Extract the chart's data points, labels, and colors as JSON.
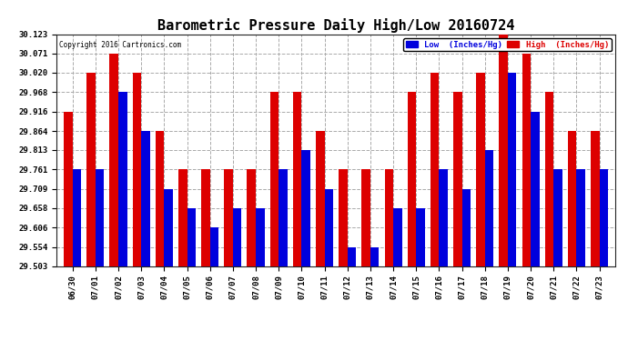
{
  "title": "Barometric Pressure Daily High/Low 20160724",
  "copyright": "Copyright 2016 Cartronics.com",
  "legend_low": "Low  (Inches/Hg)",
  "legend_high": "High  (Inches/Hg)",
  "low_color": "#0000dd",
  "high_color": "#dd0000",
  "ymin": 29.503,
  "ymax": 30.123,
  "yticks": [
    29.503,
    29.554,
    29.606,
    29.658,
    29.709,
    29.761,
    29.813,
    29.864,
    29.916,
    29.968,
    30.02,
    30.071,
    30.123
  ],
  "dates": [
    "06/30",
    "07/01",
    "07/02",
    "07/03",
    "07/04",
    "07/05",
    "07/06",
    "07/07",
    "07/08",
    "07/09",
    "07/10",
    "07/11",
    "07/12",
    "07/13",
    "07/14",
    "07/15",
    "07/16",
    "07/17",
    "07/18",
    "07/19",
    "07/20",
    "07/21",
    "07/22",
    "07/23"
  ],
  "high_values": [
    29.916,
    30.02,
    30.071,
    30.02,
    29.864,
    29.761,
    29.761,
    29.761,
    29.761,
    29.968,
    29.968,
    29.864,
    29.761,
    29.761,
    29.761,
    29.968,
    30.02,
    29.968,
    30.02,
    30.123,
    30.071,
    29.968,
    29.864,
    29.864
  ],
  "low_values": [
    29.761,
    29.761,
    29.968,
    29.864,
    29.709,
    29.658,
    29.606,
    29.658,
    29.658,
    29.761,
    29.813,
    29.709,
    29.554,
    29.554,
    29.658,
    29.658,
    29.761,
    29.709,
    29.813,
    30.02,
    29.916,
    29.761,
    29.761,
    29.761
  ],
  "background_color": "#ffffff",
  "grid_color": "#aaaaaa",
  "bar_width": 0.38,
  "title_fontsize": 11,
  "tick_fontsize": 6.5
}
